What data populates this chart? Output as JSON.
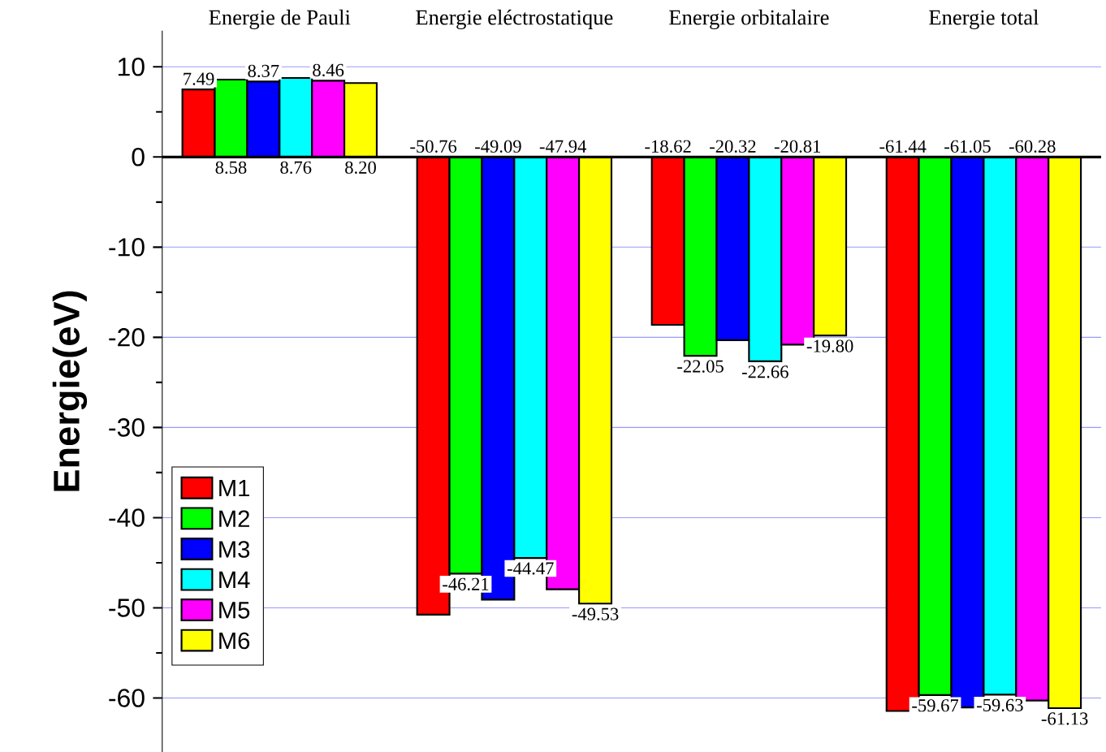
{
  "chart_data": {
    "type": "bar",
    "ylabel": "Energie(eV)",
    "categories": [
      "Energie de Pauli",
      "Energie eléctrostatique",
      "Energie orbitalaire",
      "Energie total"
    ],
    "series": [
      {
        "name": "M1",
        "color": "#ff0000",
        "values": [
          7.49,
          -50.76,
          -18.62,
          -61.44
        ],
        "value_labels": [
          "7.49",
          "-50.76",
          "-18.62",
          "-61.44"
        ]
      },
      {
        "name": "M2",
        "color": "#00ff00",
        "values": [
          8.58,
          -46.21,
          -22.05,
          -59.67
        ],
        "value_labels": [
          "8.58",
          "-46.21",
          "-22.05",
          "-59.67"
        ]
      },
      {
        "name": "M3",
        "color": "#0000ff",
        "values": [
          8.37,
          -49.09,
          -20.32,
          -61.05
        ],
        "value_labels": [
          "8.37",
          "-49.09",
          "-20.32",
          "-61.05"
        ]
      },
      {
        "name": "M4",
        "color": "#00ffff",
        "values": [
          8.76,
          -44.47,
          -22.66,
          -59.63
        ],
        "value_labels": [
          "8.76",
          "-44.47",
          "-22.66",
          "-59.63"
        ]
      },
      {
        "name": "M5",
        "color": "#ff00ff",
        "values": [
          8.46,
          -47.94,
          -20.81,
          -60.28
        ],
        "value_labels": [
          "8.46",
          "-47.94",
          "-20.81",
          "-60.28"
        ]
      },
      {
        "name": "M6",
        "color": "#ffff00",
        "values": [
          8.2,
          -49.53,
          -19.8,
          -61.13
        ],
        "value_labels": [
          "8.20",
          "-49.53",
          "-19.80",
          "-61.13"
        ]
      }
    ],
    "ylim": [
      -66,
      14
    ],
    "yticks": [
      -60,
      -50,
      -40,
      -30,
      -20,
      -10,
      0,
      10
    ],
    "grid": "y",
    "legend": "bottom left"
  }
}
